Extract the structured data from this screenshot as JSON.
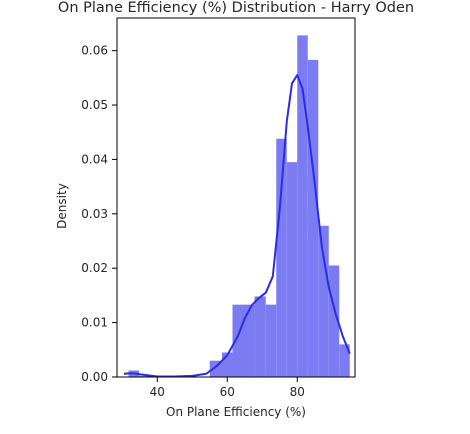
{
  "chart_data": {
    "type": "histogram",
    "title": "On Plane Efficiency (%) Distribution - Harry Oden",
    "xlabel": "On Plane Efficiency (%)",
    "ylabel": "Density",
    "xlim": [
      28.5,
      96.5
    ],
    "ylim": [
      0,
      0.066
    ],
    "x_ticks": [
      40,
      60,
      80
    ],
    "y_ticks": [
      0.0,
      0.01,
      0.02,
      0.03,
      0.04,
      0.05,
      0.06
    ],
    "y_tick_labels": [
      "0.00",
      "0.01",
      "0.02",
      "0.03",
      "0.04",
      "0.05",
      "0.06"
    ],
    "grid": false,
    "legend": "none",
    "bar_color": "#7b7cf2",
    "kde_color": "#2b2be8",
    "bins": [
      {
        "x0": 31.8,
        "x1": 34.8,
        "density": 0.0012
      },
      {
        "x0": 34.8,
        "x1": 37.8,
        "density": 0.0002
      },
      {
        "x0": 55.0,
        "x1": 58.5,
        "density": 0.003
      },
      {
        "x0": 58.5,
        "x1": 61.5,
        "density": 0.0045
      },
      {
        "x0": 61.5,
        "x1": 64.5,
        "density": 0.0133
      },
      {
        "x0": 64.5,
        "x1": 67.8,
        "density": 0.0133
      },
      {
        "x0": 67.8,
        "x1": 71.0,
        "density": 0.0148
      },
      {
        "x0": 71.0,
        "x1": 74.0,
        "density": 0.0133
      },
      {
        "x0": 74.0,
        "x1": 77.0,
        "density": 0.0438
      },
      {
        "x0": 77.0,
        "x1": 80.0,
        "density": 0.0395
      },
      {
        "x0": 80.0,
        "x1": 83.0,
        "density": 0.0628
      },
      {
        "x0": 83.0,
        "x1": 86.0,
        "density": 0.0583
      },
      {
        "x0": 86.0,
        "x1": 89.0,
        "density": 0.0278
      },
      {
        "x0": 89.0,
        "x1": 92.0,
        "density": 0.0205
      },
      {
        "x0": 92.0,
        "x1": 95.0,
        "density": 0.006
      }
    ],
    "kde": {
      "x": [
        30.5,
        33,
        36,
        40,
        45,
        50,
        54,
        57,
        60,
        63,
        65,
        67,
        69,
        71,
        73,
        75,
        77,
        78.5,
        80,
        81.5,
        83,
        85,
        87,
        89,
        91,
        93,
        95
      ],
      "y": [
        0.0006,
        0.0007,
        0.0004,
        0.0001,
        0.0001,
        0.0002,
        0.0006,
        0.002,
        0.004,
        0.0075,
        0.0108,
        0.0132,
        0.0145,
        0.0155,
        0.0185,
        0.031,
        0.047,
        0.054,
        0.0555,
        0.053,
        0.046,
        0.0355,
        0.024,
        0.0165,
        0.0115,
        0.0075,
        0.0043
      ]
    }
  }
}
